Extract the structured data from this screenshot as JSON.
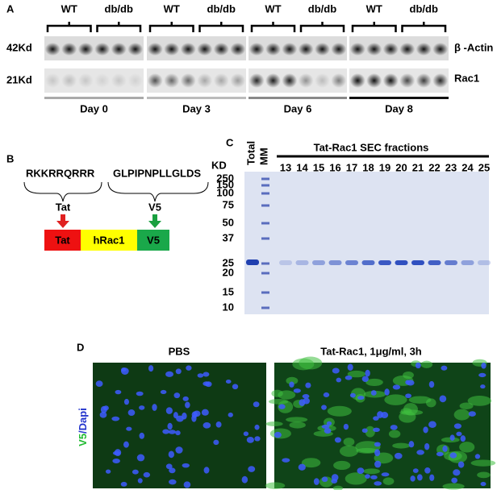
{
  "panel_a": {
    "label": "A",
    "groups": [
      {
        "wt": "WT",
        "db": "db/db",
        "day": "Day 0"
      },
      {
        "wt": "WT",
        "db": "db/db",
        "day": "Day 3"
      },
      {
        "wt": "WT",
        "db": "db/db",
        "day": "Day 6"
      },
      {
        "wt": "WT",
        "db": "db/db",
        "day": "Day 8"
      }
    ],
    "sizes": [
      "42Kd",
      "21Kd"
    ],
    "proteins": [
      "β -Actin",
      "Rac1"
    ]
  },
  "panel_b": {
    "label": "B",
    "sequences": [
      "RKKRRQRRR",
      "GLPIPNPLLGLDS"
    ],
    "tags": [
      "Tat",
      "V5"
    ],
    "construct": [
      "Tat",
      "hRac1",
      "V5"
    ]
  },
  "panel_c": {
    "label": "C",
    "title": "Tat-Rac1 SEC fractions",
    "lanes": [
      "Total",
      "MM"
    ],
    "unit": "KD",
    "markers": [
      250,
      150,
      100,
      75,
      50,
      37,
      25,
      20,
      15,
      10
    ],
    "fractions": [
      13,
      14,
      15,
      16,
      17,
      18,
      19,
      20,
      21,
      22,
      23,
      24,
      25
    ]
  },
  "panel_d": {
    "label": "D",
    "conditions": [
      "PBS",
      "Tat-Rac1, 1μg/ml, 3h"
    ],
    "stain": [
      "V5",
      "/Dapi"
    ]
  }
}
